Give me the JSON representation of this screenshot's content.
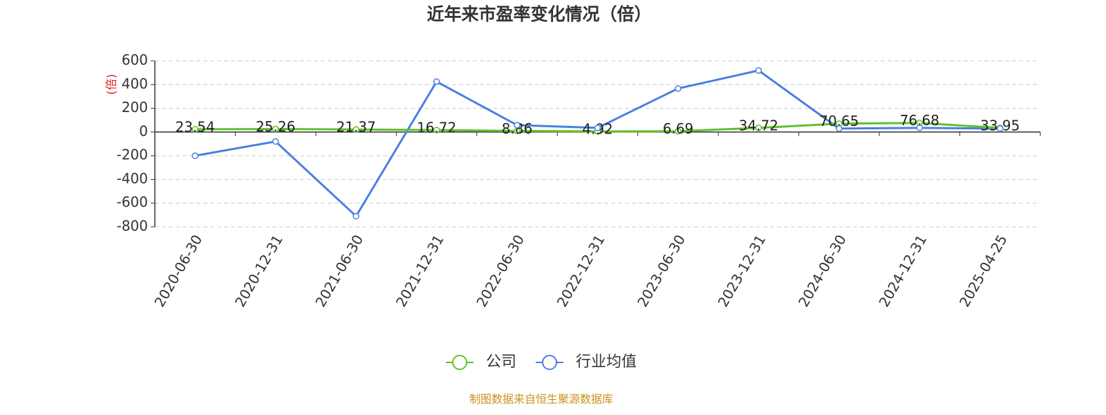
{
  "chart_data": {
    "type": "line",
    "title": "近年来市盈率变化情况（倍）",
    "y_label": "(倍)",
    "source": "制图数据来自恒生聚源数据库",
    "categories": [
      "2020-06-30",
      "2020-12-31",
      "2021-06-30",
      "2021-12-31",
      "2022-06-30",
      "2022-12-31",
      "2023-06-30",
      "2023-12-31",
      "2024-06-30",
      "2024-12-31",
      "2025-04-25"
    ],
    "series": [
      {
        "name": "公司",
        "color": "#5ec12b",
        "show_labels": true,
        "values": [
          23.54,
          25.26,
          21.37,
          16.72,
          8.86,
          4.92,
          6.69,
          34.72,
          70.65,
          76.68,
          33.95
        ]
      },
      {
        "name": "行业均值",
        "color": "#4a7fe0",
        "show_labels": false,
        "values": [
          -200,
          -80,
          -710,
          425,
          58,
          35,
          367,
          519,
          29,
          35,
          29
        ]
      }
    ],
    "ylim": [
      -800,
      600
    ],
    "yticks": [
      -800,
      -600,
      -400,
      -200,
      0,
      200,
      400,
      600
    ],
    "grid": true
  }
}
